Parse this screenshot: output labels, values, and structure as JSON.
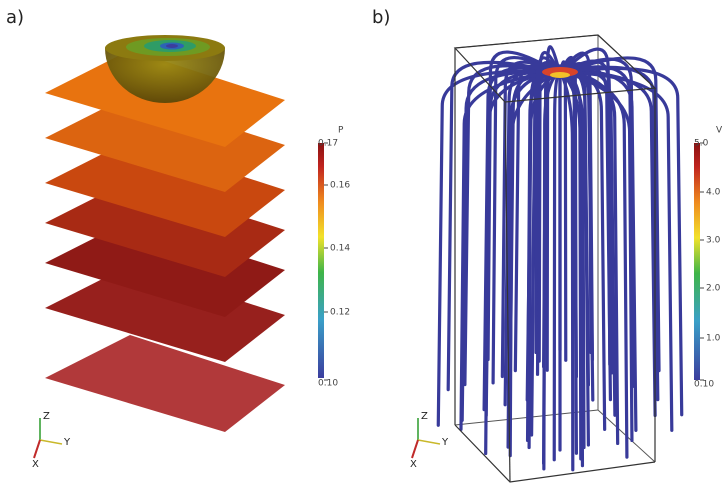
{
  "panels": [
    {
      "label": "a)",
      "colorbar": {
        "title": "P",
        "ticks": [
          "0.17",
          "0.16",
          "0.14",
          "0.12",
          "0.10"
        ]
      },
      "axes": {
        "z": "Z",
        "y": "Y",
        "x": "X"
      }
    },
    {
      "label": "b)",
      "colorbar": {
        "title": "V",
        "ticks": [
          "5.0",
          "4.0",
          "3.0",
          "2.0",
          "1.0",
          "0.10"
        ]
      },
      "axes": {
        "z": "Z",
        "y": "Y",
        "x": "X"
      }
    }
  ]
}
